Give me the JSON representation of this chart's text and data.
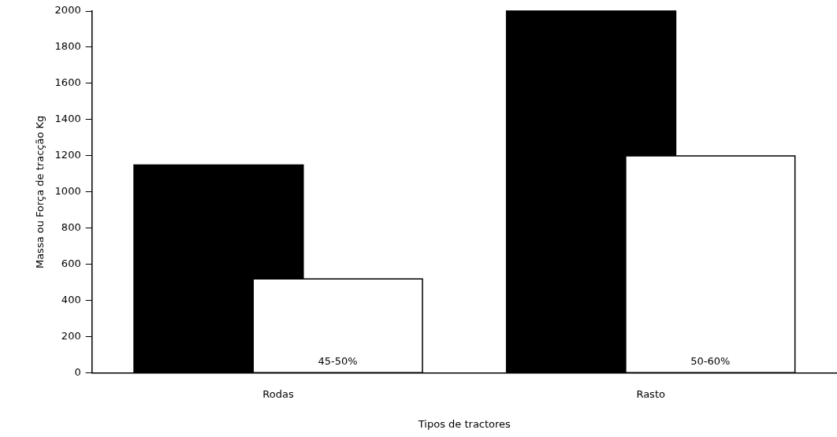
{
  "chart_data": {
    "type": "bar",
    "xlabel": "Tipos de tractores",
    "ylabel": "Massa ou Força de tracção Kg",
    "categories": [
      "Rodas",
      "Rasto"
    ],
    "series": [
      {
        "color": "#000000",
        "values": [
          1150,
          2000
        ]
      },
      {
        "color": "#ffffff",
        "values": [
          520,
          1200
        ]
      }
    ],
    "ylim": [
      0,
      2000
    ],
    "yticks": [
      0,
      200,
      400,
      600,
      800,
      1000,
      1200,
      1400,
      1600,
      1800,
      2000
    ],
    "grid": false,
    "legend": false,
    "annotations": [
      "45-50%",
      "50-60%"
    ]
  }
}
